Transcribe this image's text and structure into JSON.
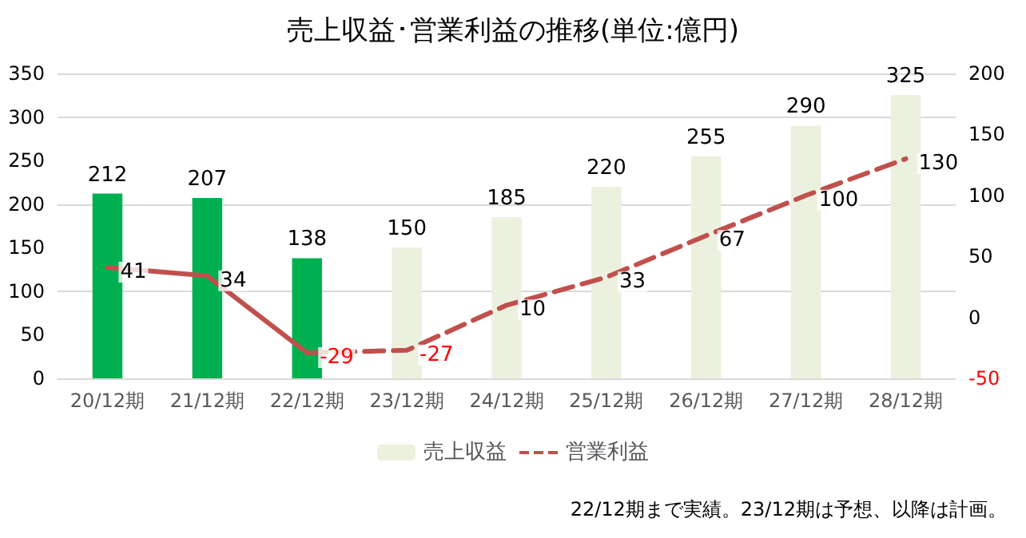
{
  "chart_data": {
    "type": "bar",
    "title": "売上収益･営業利益の推移(単位:億円)",
    "categories": [
      "20/12期",
      "21/12期",
      "22/12期",
      "23/12期",
      "24/12期",
      "25/12期",
      "26/12期",
      "27/12期",
      "28/12期"
    ],
    "series": [
      {
        "name": "売上収益",
        "colors": [
          "#00b050",
          "#00b050",
          "#00b050",
          "#ebf1de",
          "#ebf1de",
          "#ebf1de",
          "#ebf1de",
          "#ebf1de",
          "#ebf1de"
        ],
        "color": "#ebf1de",
        "values": [
          212,
          207,
          138,
          150,
          185,
          220,
          255,
          290,
          325
        ],
        "value_labels": [
          "212",
          "207",
          "138",
          "150",
          "185",
          "220",
          "255",
          "290",
          "325"
        ]
      },
      {
        "type": "line",
        "axis": "y2",
        "color": "#c0504d",
        "line_style": "solid",
        "values": [
          41,
          34,
          -29,
          null,
          null,
          null,
          null,
          null,
          null
        ],
        "value_labels": [
          "41",
          "34",
          "-29",
          null,
          null,
          null,
          null,
          null,
          null
        ]
      },
      {
        "name": "営業利益",
        "type": "line",
        "axis": "y2",
        "color": "#c0504d",
        "line_style": "dashed",
        "values": [
          null,
          null,
          -29,
          -27,
          10,
          33,
          67,
          100,
          130
        ],
        "value_labels": [
          null,
          null,
          null,
          "-27",
          "10",
          "33",
          "67",
          "100",
          "130"
        ]
      }
    ],
    "ylim": [
      0,
      350
    ],
    "yticks": [
      0,
      50,
      100,
      150,
      200,
      250,
      300,
      350
    ],
    "y2lim": [
      -50,
      200
    ],
    "y2ticks": [
      -50,
      0,
      50,
      100,
      150,
      200
    ],
    "grid": "y",
    "legend": "bottom",
    "marker": "none",
    "annotations": [
      "22/12期まで実績。23/12期は予想、以降は計画。"
    ]
  }
}
